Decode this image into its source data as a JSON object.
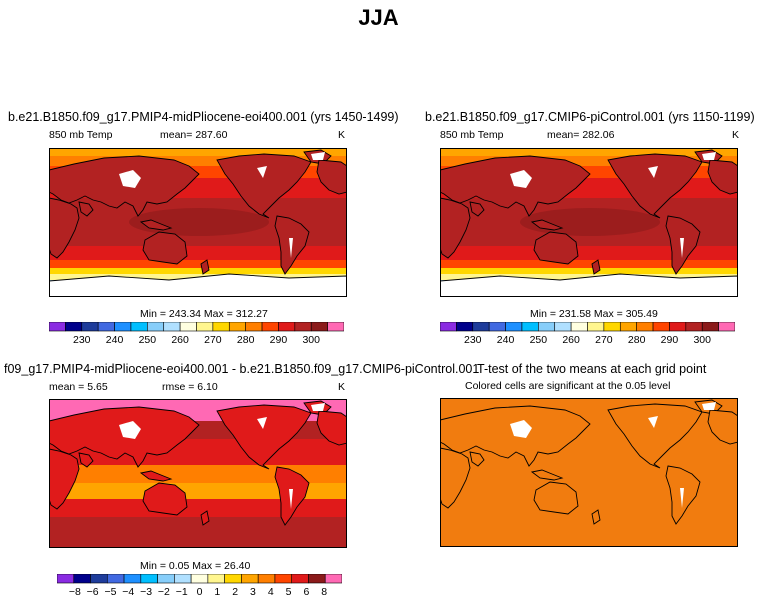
{
  "figure": {
    "title": "JJA"
  },
  "colors": {
    "orange_bg": "#F17C0F",
    "ocean_red": "#E21C1C",
    "land_white": "#FFFFFF",
    "outline": "#000000"
  },
  "chart_data": [
    {
      "type": "heatmap",
      "id": "top-left",
      "title": "b.e21.B1850.f09_g17.PMIP4-midPliocene-eoi400.001 (yrs 1450-1499)",
      "variable_label": "850 mb Temp",
      "mean_text": "mean= 287.60",
      "units": "K",
      "minmax_text": "Min = 243.34  Max = 312.27",
      "min": 243.34,
      "max": 312.27,
      "mean": 287.6,
      "colorbar": {
        "tick_labels": [
          "230",
          "240",
          "250",
          "260",
          "270",
          "280",
          "290",
          "300"
        ],
        "colors": [
          "#8A2BE2",
          "#00008B",
          "#1E3C9B",
          "#4169E1",
          "#1E90FF",
          "#00BFFF",
          "#87CEFA",
          "#B0E0FF",
          "#FFFFE0",
          "#FFF68F",
          "#FFD700",
          "#FFA500",
          "#FF7F00",
          "#FF4500",
          "#E01A1A",
          "#B22222",
          "#8B1A1A",
          "#FF69B4"
        ]
      }
    },
    {
      "type": "heatmap",
      "id": "top-right",
      "title": "b.e21.B1850.f09_g17.CMIP6-piControl.001 (yrs 1150-1199)",
      "variable_label": "850 mb Temp",
      "mean_text": "mean= 282.06",
      "units": "K",
      "minmax_text": "Min = 231.58  Max = 305.49",
      "min": 231.58,
      "max": 305.49,
      "mean": 282.06,
      "colorbar": {
        "tick_labels": [
          "230",
          "240",
          "250",
          "260",
          "270",
          "280",
          "290",
          "300"
        ],
        "colors": [
          "#8A2BE2",
          "#00008B",
          "#1E3C9B",
          "#4169E1",
          "#1E90FF",
          "#00BFFF",
          "#87CEFA",
          "#B0E0FF",
          "#FFFFE0",
          "#FFF68F",
          "#FFD700",
          "#FFA500",
          "#FF7F00",
          "#FF4500",
          "#E01A1A",
          "#B22222",
          "#8B1A1A",
          "#FF69B4"
        ]
      }
    },
    {
      "type": "heatmap",
      "id": "bottom-left",
      "title": "f09_g17.PMIP4-midPliocene-eoi400.001 - b.e21.B1850.f09_g17.CMIP6-piControl.001",
      "mean_text": "mean =    5.65",
      "rmse_text": "rmse =    6.10",
      "units": "K",
      "minmax_text": "Min =    0.05 Max =   26.40",
      "min": 0.05,
      "max": 26.4,
      "mean": 5.65,
      "rmse": 6.1,
      "colorbar": {
        "tick_labels": [
          "−8",
          "−6",
          "−5",
          "−4",
          "−3",
          "−2",
          "−1",
          "0",
          "1",
          "2",
          "3",
          "4",
          "5",
          "6",
          "8"
        ],
        "colors": [
          "#8A2BE2",
          "#00008B",
          "#1E3C9B",
          "#4169E1",
          "#1E90FF",
          "#00BFFF",
          "#87CEFA",
          "#B0E0FF",
          "#FFFFE0",
          "#FFF68F",
          "#FFD700",
          "#FFA500",
          "#FF7F00",
          "#FF4500",
          "#E01A1A",
          "#8B1A1A",
          "#FF69B4"
        ]
      }
    },
    {
      "type": "heatmap",
      "id": "bottom-right",
      "title": "T-test of the two means at each grid point",
      "subtitle": "Colored cells are significant at the 0.05 level"
    }
  ]
}
